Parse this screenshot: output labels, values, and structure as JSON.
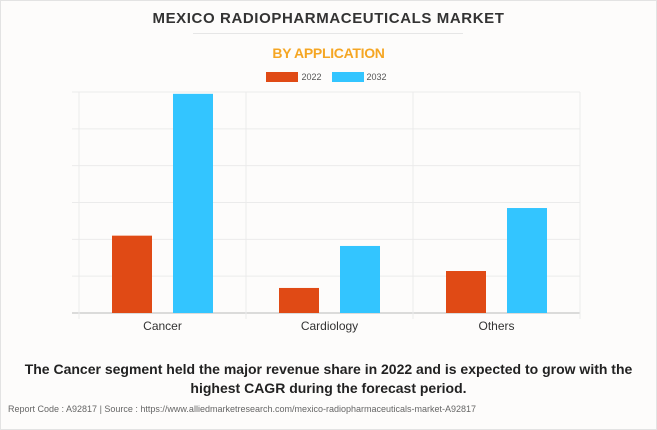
{
  "chart_data": {
    "type": "bar",
    "title": "MEXICO RADIOPHARMACEUTICALS MARKET",
    "subtitle": "BY APPLICATION",
    "xlabel": "",
    "ylabel": "",
    "categories": [
      "Cancer",
      "Cardiology",
      "Others"
    ],
    "series": [
      {
        "name": "2022",
        "color": "#e04a15",
        "values": [
          2.1,
          0.68,
          1.14
        ]
      },
      {
        "name": "2032",
        "color": "#33c5ff",
        "values": [
          5.95,
          1.82,
          2.85
        ]
      }
    ],
    "ylim": [
      0,
      6
    ],
    "y_gridlines": 6,
    "y_tick_labels_shown": false,
    "grid": true,
    "legend_position": "top-center",
    "value_units": "relative (unlabeled axis; gridline units)"
  },
  "caption": "The Cancer segment held the major revenue share in 2022 and is expected to grow with the highest CAGR during the forecast period.",
  "footer": "Report Code : A92817  |  Source : https://www.alliedmarketresearch.com/mexico-radiopharmaceuticals-market-A92817",
  "colors": {
    "title": "#333333",
    "subtitle": "#f5a623",
    "series_2022": "#e04a15",
    "series_2032": "#33c5ff"
  }
}
